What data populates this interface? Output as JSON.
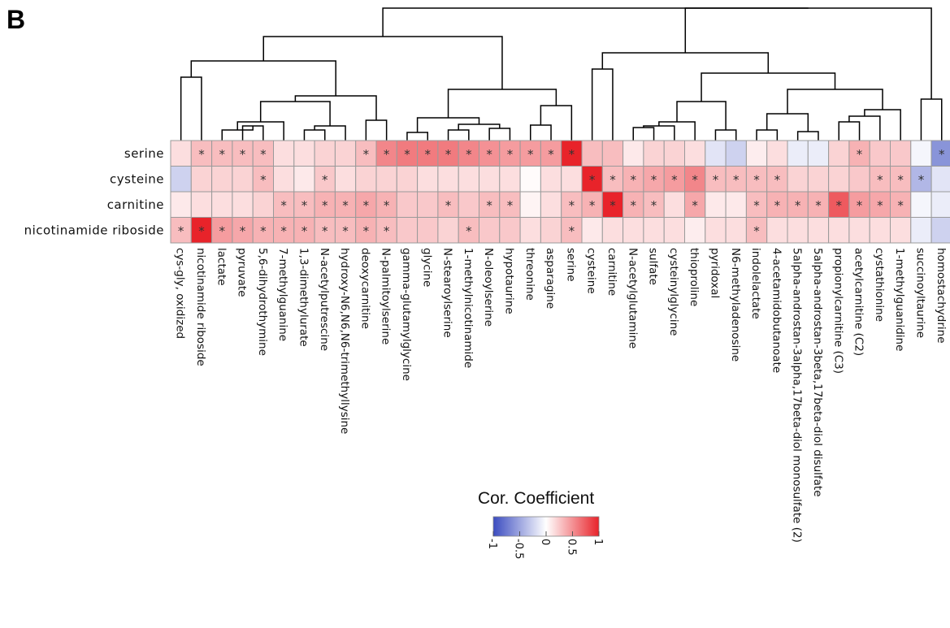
{
  "panel_label": "B",
  "chart_data": {
    "type": "heatmap",
    "rows": [
      "serine",
      "cysteine",
      "carnitine",
      "nicotinamide riboside"
    ],
    "columns": [
      "cys-gly, oxidized",
      "nicotinamide riboside",
      "lactate",
      "pyruvate",
      "5,6-dihydrothymine",
      "7-methylguanine",
      "1,3-dimethylurate",
      "N-acetylputrescine",
      "hydroxy-N6,N6,N6-trimethyllysine",
      "deoxycarnitine",
      "N-palmitoylserine",
      "gamma-glutamylglycine",
      "glycine",
      "N-stearoylserine",
      "1-methylnicotinamide",
      "N-oleoylserine",
      "hypotaurine",
      "threonine",
      "asparagine",
      "serine",
      "cysteine",
      "carnitine",
      "N-acetylglutamine",
      "sulfate",
      "cysteinylglycine",
      "thioproline",
      "pyridoxal",
      "N6-methyladenosine",
      "indolelactate",
      "4-acetamidobutanoate",
      "5alpha-androstan-3alpha,17beta-diol monosulfate (2)",
      "5alpha-androstan-3beta,17beta-diol disulfate",
      "propionylcarnitine (C3)",
      "acetylcarnitine (C2)",
      "cystathionine",
      "1-methylguanidine",
      "succinoyltaurine",
      "homostachydrine"
    ],
    "values": [
      [
        0.15,
        0.3,
        0.3,
        0.3,
        0.3,
        0.15,
        0.15,
        0.2,
        0.2,
        0.3,
        0.55,
        0.6,
        0.6,
        0.6,
        0.55,
        0.5,
        0.45,
        0.45,
        0.45,
        1.0,
        0.3,
        0.3,
        0.1,
        0.2,
        0.2,
        0.15,
        -0.15,
        -0.25,
        0.08,
        0.15,
        -0.1,
        -0.1,
        0.2,
        0.35,
        0.25,
        0.25,
        -0.05,
        -0.6
      ],
      [
        -0.25,
        0.2,
        0.2,
        0.2,
        0.3,
        0.15,
        0.1,
        0.25,
        0.15,
        0.2,
        0.2,
        0.2,
        0.15,
        0.15,
        0.15,
        0.15,
        0.15,
        0.02,
        0.15,
        0.15,
        1.0,
        0.3,
        0.35,
        0.4,
        0.45,
        0.55,
        0.3,
        0.3,
        0.3,
        0.3,
        0.2,
        0.2,
        0.2,
        0.25,
        0.3,
        0.3,
        -0.4,
        -0.15
      ],
      [
        0.1,
        0.15,
        0.15,
        0.15,
        0.2,
        0.3,
        0.3,
        0.35,
        0.35,
        0.4,
        0.35,
        0.25,
        0.25,
        0.3,
        0.25,
        0.3,
        0.3,
        0.05,
        0.15,
        0.3,
        0.35,
        1.0,
        0.35,
        0.3,
        0.15,
        0.4,
        0.1,
        0.1,
        0.3,
        0.35,
        0.35,
        0.35,
        0.75,
        0.45,
        0.4,
        0.35,
        -0.05,
        -0.1
      ],
      [
        0.3,
        1.0,
        0.45,
        0.4,
        0.35,
        0.35,
        0.35,
        0.3,
        0.3,
        0.35,
        0.3,
        0.25,
        0.25,
        0.2,
        0.3,
        0.25,
        0.25,
        0.15,
        0.2,
        0.3,
        0.1,
        0.15,
        0.15,
        0.15,
        0.15,
        0.08,
        0.15,
        0.15,
        0.3,
        0.15,
        0.15,
        0.15,
        0.15,
        0.15,
        0.15,
        0.15,
        -0.1,
        -0.25
      ]
    ],
    "significant": [
      [
        0,
        1,
        1,
        1,
        1,
        0,
        0,
        0,
        0,
        1,
        1,
        1,
        1,
        1,
        1,
        1,
        1,
        1,
        1,
        1,
        0,
        0,
        0,
        0,
        0,
        0,
        0,
        0,
        0,
        0,
        0,
        0,
        0,
        1,
        0,
        0,
        0,
        1
      ],
      [
        0,
        0,
        0,
        0,
        1,
        0,
        0,
        1,
        0,
        0,
        0,
        0,
        0,
        0,
        0,
        0,
        0,
        0,
        0,
        0,
        1,
        1,
        1,
        1,
        1,
        1,
        1,
        1,
        1,
        1,
        0,
        0,
        0,
        0,
        1,
        1,
        1,
        0
      ],
      [
        0,
        0,
        0,
        0,
        0,
        1,
        1,
        1,
        1,
        1,
        1,
        0,
        0,
        1,
        0,
        1,
        1,
        0,
        0,
        1,
        1,
        1,
        1,
        1,
        0,
        1,
        0,
        0,
        1,
        1,
        1,
        1,
        1,
        1,
        1,
        1,
        0,
        0
      ],
      [
        1,
        1,
        1,
        1,
        1,
        1,
        1,
        1,
        1,
        1,
        1,
        0,
        0,
        0,
        1,
        0,
        0,
        0,
        0,
        1,
        0,
        0,
        0,
        0,
        0,
        0,
        0,
        0,
        1,
        0,
        0,
        0,
        0,
        0,
        0,
        0,
        0,
        0
      ]
    ],
    "significance_marker": "*",
    "color_scale": {
      "title": "Cor. Coefficient",
      "min": -1,
      "max": 1,
      "ticks": [
        "-1",
        "-0.5",
        "0",
        "0.5",
        "1"
      ],
      "low_color": "#3b4cc0",
      "mid_color": "#ffffff",
      "high_color": "#e8232a"
    },
    "dendrogram": "column clustering tree shown above heatmap"
  }
}
